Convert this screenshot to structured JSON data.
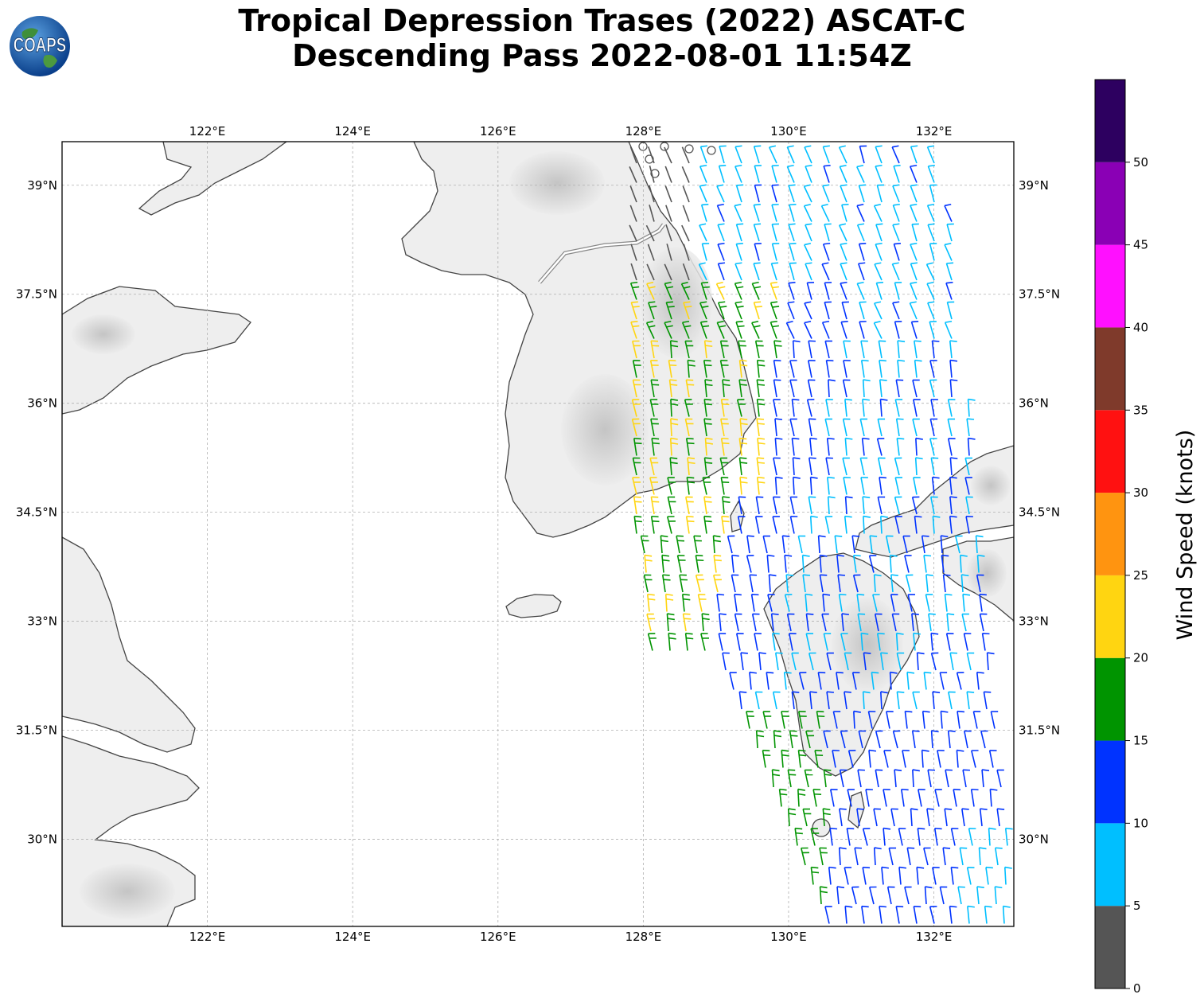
{
  "title": {
    "line1": "Tropical Depression Trases (2022) ASCAT-C",
    "line2": "Descending Pass 2022-08-01 11:54Z"
  },
  "logo": {
    "text": "COAPS",
    "icon": "globe-icon"
  },
  "map": {
    "extent": {
      "lon_min": 120.0,
      "lon_max": 133.1,
      "lat_min": 28.8,
      "lat_max": 39.6
    },
    "lon_ticks": [
      {
        "value": 122,
        "label": "122°E"
      },
      {
        "value": 124,
        "label": "124°E"
      },
      {
        "value": 126,
        "label": "126°E"
      },
      {
        "value": 128,
        "label": "128°E"
      },
      {
        "value": 130,
        "label": "130°E"
      },
      {
        "value": 132,
        "label": "132°E"
      }
    ],
    "lat_ticks": [
      {
        "value": 39,
        "label": "39°N"
      },
      {
        "value": 37.5,
        "label": "37.5°N"
      },
      {
        "value": 36,
        "label": "36°N"
      },
      {
        "value": 34.5,
        "label": "34.5°N"
      },
      {
        "value": 33,
        "label": "33°N"
      },
      {
        "value": 31.5,
        "label": "31.5°N"
      },
      {
        "value": 30,
        "label": "30°N"
      }
    ],
    "gridlines": true,
    "land_color": "#eeeeee",
    "coast_color": "#444444",
    "island_jeju": {
      "lon": 126.55,
      "lat": 33.38
    }
  },
  "colorbar": {
    "label": "Wind Speed (knots)",
    "ticks": [
      "0",
      "5",
      "10",
      "15",
      "20",
      "25",
      "30",
      "35",
      "40",
      "45",
      "50"
    ],
    "bins": [
      {
        "min": 0,
        "max": 5,
        "color": "#555555"
      },
      {
        "min": 5,
        "max": 10,
        "color": "#00bfff"
      },
      {
        "min": 10,
        "max": 15,
        "color": "#0033ff"
      },
      {
        "min": 15,
        "max": 20,
        "color": "#009400"
      },
      {
        "min": 20,
        "max": 25,
        "color": "#ffd511"
      },
      {
        "min": 25,
        "max": 30,
        "color": "#ff9410"
      },
      {
        "min": 30,
        "max": 35,
        "color": "#ff1111"
      },
      {
        "min": 35,
        "max": 40,
        "color": "#7f3a2b"
      },
      {
        "min": 40,
        "max": 45,
        "color": "#ff10ff"
      },
      {
        "min": 45,
        "max": 50,
        "color": "#8a00b5"
      },
      {
        "min": 50,
        "max": 55,
        "color": "#2d0060"
      }
    ]
  },
  "wind_barbs_visible": true
}
